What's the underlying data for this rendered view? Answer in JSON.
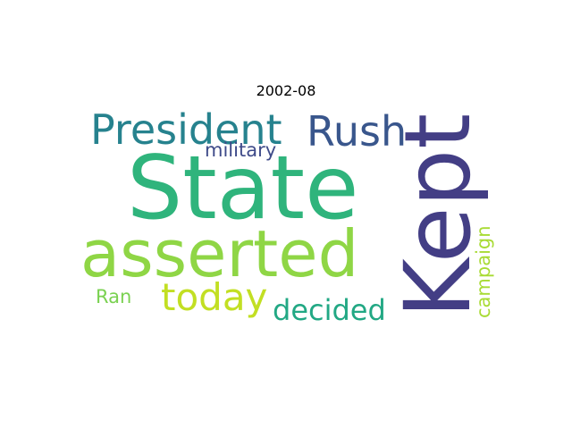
{
  "title": "2002-08",
  "words": [
    {
      "text": "State",
      "color": "#2fb47c"
    },
    {
      "text": "asserted",
      "color": "#8fd645"
    },
    {
      "text": "Kept",
      "color": "#433e85"
    },
    {
      "text": "President",
      "color": "#26828e"
    },
    {
      "text": "Rush",
      "color": "#39568c"
    },
    {
      "text": "today",
      "color": "#c2df23"
    },
    {
      "text": "decided",
      "color": "#22a884"
    },
    {
      "text": "military",
      "color": "#3e4a89"
    },
    {
      "text": "campaign",
      "color": "#a8db34"
    },
    {
      "text": "Ran",
      "color": "#7ad151"
    }
  ]
}
